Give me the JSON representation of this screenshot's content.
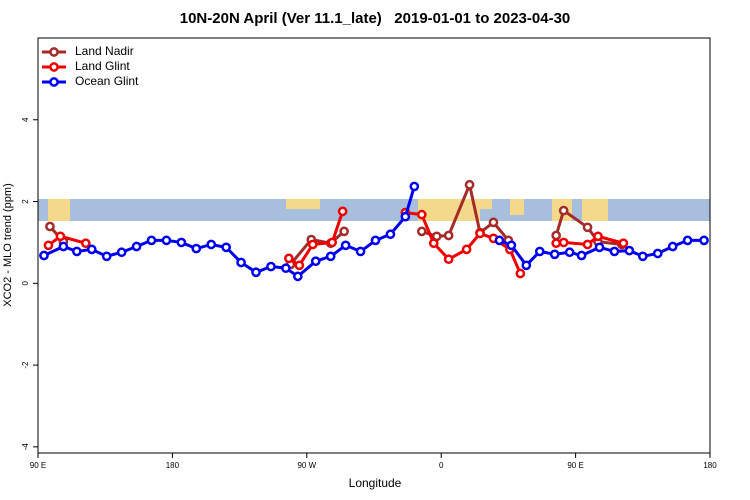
{
  "chart_data": {
    "type": "line",
    "title": "10N-20N April (Ver 11.1_late)   2019-01-01 to 2023-04-30",
    "xlabel": "Longitude",
    "ylabel": "XCO2 - MLO trend (ppm)",
    "xlim": [
      90,
      540
    ],
    "ylim": [
      -4.15,
      6
    ],
    "xticks": [
      {
        "value": 90,
        "label": "90 E"
      },
      180,
      {
        "value": 270,
        "label": "90 W"
      },
      {
        "value": 360,
        "label": "0"
      },
      {
        "value": 450,
        "label": "90 E"
      },
      {
        "value": 540,
        "label": "180"
      }
    ],
    "yticks": [
      -4,
      -2,
      0,
      2,
      4
    ],
    "legend": "top-left",
    "series": [
      {
        "name": "Land Nadir",
        "color": "#a52a2a",
        "x": [
          98,
          107,
          180,
          259,
          273,
          286,
          295,
          320,
          347,
          357,
          365,
          379,
          386,
          395,
          405,
          420,
          437,
          442,
          458,
          465,
          481
        ],
        "values": [
          1.39,
          1.02,
          null,
          0.46,
          1.07,
          0.98,
          1.27,
          null,
          1.27,
          1.15,
          1.17,
          2.41,
          1.24,
          1.49,
          1.05,
          null,
          1.17,
          1.78,
          1.37,
          1.02,
          0.95
        ]
      },
      {
        "name": "Land Glint",
        "color": "#ee0000",
        "x": [
          97,
          105,
          122,
          190,
          258,
          265,
          274,
          287,
          294,
          315,
          336,
          347,
          355,
          365,
          377,
          386,
          395,
          406,
          413,
          425,
          437,
          442,
          458,
          465,
          482
        ],
        "values": [
          0.93,
          1.15,
          0.98,
          null,
          0.61,
          0.44,
          0.95,
          1.0,
          1.76,
          null,
          1.73,
          1.68,
          0.98,
          0.59,
          0.83,
          1.22,
          1.1,
          0.83,
          0.24,
          null,
          0.98,
          1.0,
          0.95,
          1.15,
          0.98
        ]
      },
      {
        "name": "Ocean Glint",
        "color": "#0000ee",
        "x": [
          94,
          107,
          116,
          126,
          136,
          146,
          156,
          166,
          176,
          186,
          196,
          206,
          216,
          226,
          236,
          246,
          256,
          264,
          276,
          286,
          296,
          306,
          316,
          326,
          336,
          342,
          370,
          399,
          407,
          417,
          426,
          436,
          446,
          454,
          466,
          476,
          486,
          495,
          505,
          515,
          525,
          536
        ],
        "values": [
          0.68,
          0.9,
          0.78,
          0.83,
          0.66,
          0.76,
          0.9,
          1.05,
          1.05,
          1.0,
          0.85,
          0.95,
          0.88,
          0.51,
          0.27,
          0.41,
          0.37,
          0.17,
          0.54,
          0.66,
          0.93,
          0.78,
          1.05,
          1.2,
          1.63,
          2.37,
          null,
          1.05,
          0.93,
          0.44,
          0.78,
          0.71,
          0.76,
          0.68,
          0.88,
          0.78,
          0.8,
          0.66,
          0.73,
          0.9,
          1.05,
          1.05
        ]
      }
    ]
  }
}
